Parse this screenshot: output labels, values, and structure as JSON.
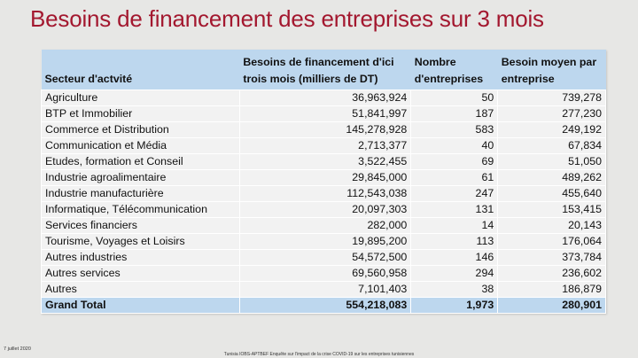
{
  "title": "Besoins de financement des entreprises sur 3 mois",
  "table": {
    "headers": [
      "Secteur d'actvité",
      "Besoins de financement d'ici trois mois (milliers de DT)",
      "Nombre d'entreprises",
      "Besoin moyen par entreprise"
    ],
    "rows": [
      [
        "Agriculture",
        "36,963,924",
        "50",
        "739,278"
      ],
      [
        "BTP et Immobilier",
        "51,841,997",
        "187",
        "277,230"
      ],
      [
        "Commerce et Distribution",
        "145,278,928",
        "583",
        "249,192"
      ],
      [
        "Communication et Média",
        "2,713,377",
        "40",
        "67,834"
      ],
      [
        "Etudes, formation et Conseil",
        "3,522,455",
        "69",
        "51,050"
      ],
      [
        "Industrie agroalimentaire",
        "29,845,000",
        "61",
        "489,262"
      ],
      [
        "Industrie manufacturière",
        "112,543,038",
        "247",
        "455,640"
      ],
      [
        "Informatique, Télécommunication",
        "20,097,303",
        "131",
        "153,415"
      ],
      [
        "Services financiers",
        "282,000",
        "14",
        "20,143"
      ],
      [
        "Tourisme, Voyages et Loisirs",
        "19,895,200",
        "113",
        "176,064"
      ],
      [
        "Autres industries",
        "54,572,500",
        "146",
        "373,784"
      ],
      [
        "Autres services",
        "69,560,958",
        "294",
        "236,602"
      ],
      [
        "Autres",
        "7,101,403",
        "38",
        "186,879"
      ]
    ],
    "total": [
      "Grand Total",
      "554,218,083",
      "1,973",
      "280,901"
    ]
  },
  "footer": {
    "date": "7 juillet 2020",
    "source": "Tunisia IOBS-APTBEF Enquête sur l'impact de la crise COVID-19 sur les entreprises tunisiennes"
  }
}
